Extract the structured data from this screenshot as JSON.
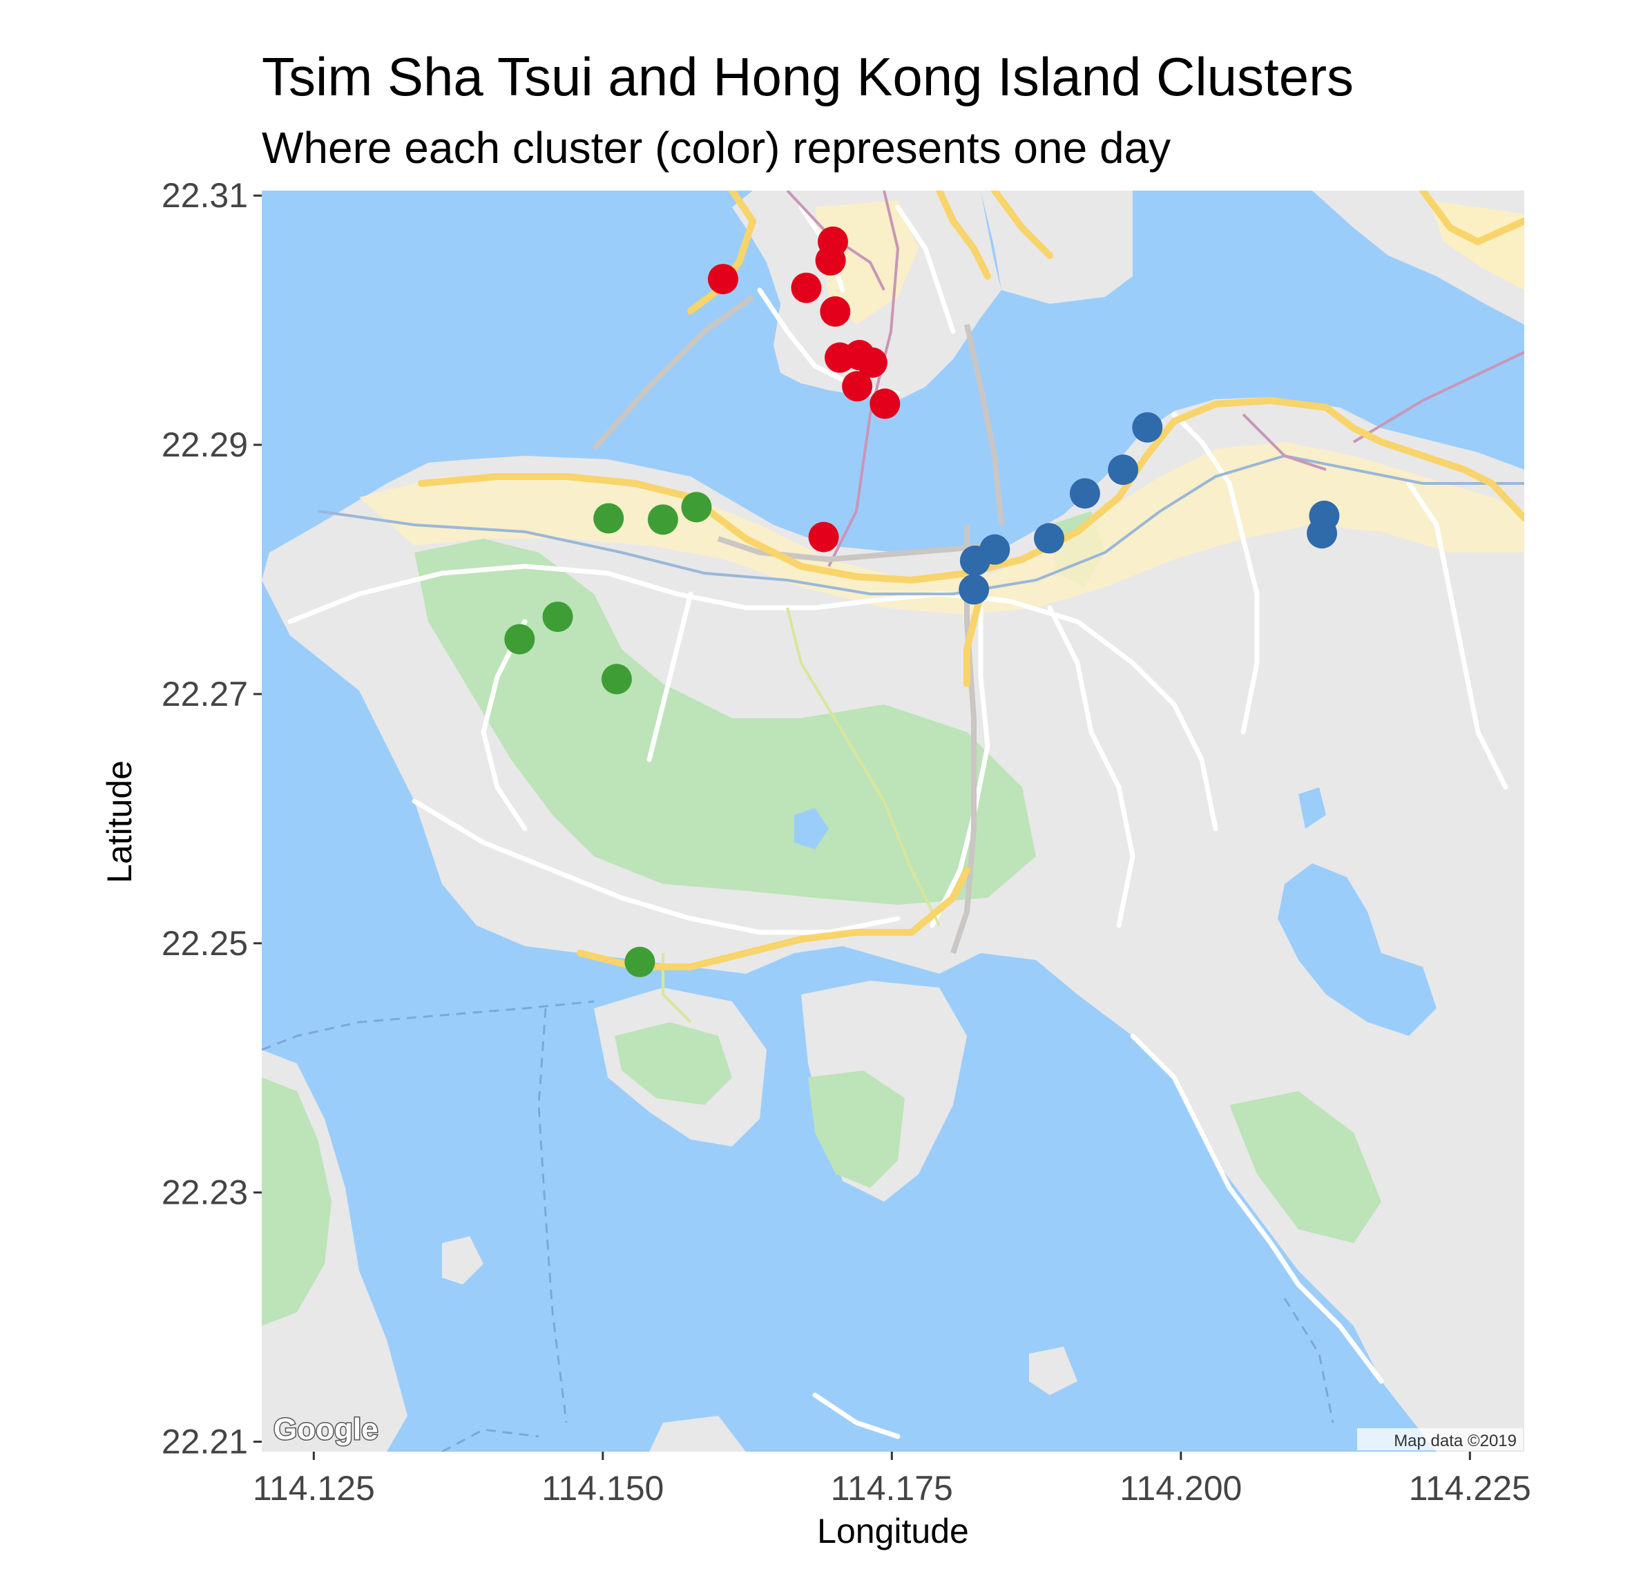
{
  "chart_data": {
    "type": "scatter",
    "title": "Tsim Sha Tsui and Hong Kong Island Clusters",
    "subtitle": "Where each cluster (color) represents one day",
    "xlabel": "Longitude",
    "ylabel": "Latitude",
    "xlim": [
      114.1205,
      114.2297
    ],
    "ylim": [
      22.2092,
      22.3104
    ],
    "x_ticks": [
      {
        "value": 114.125,
        "label": "114.125"
      },
      {
        "value": 114.15,
        "label": "114.150"
      },
      {
        "value": 114.175,
        "label": "114.175"
      },
      {
        "value": 114.2,
        "label": "114.200"
      },
      {
        "value": 114.225,
        "label": "114.225"
      }
    ],
    "y_ticks": [
      {
        "value": 22.21,
        "label": "22.21"
      },
      {
        "value": 22.23,
        "label": "22.23"
      },
      {
        "value": 22.25,
        "label": "22.25"
      },
      {
        "value": 22.27,
        "label": "22.27"
      },
      {
        "value": 22.29,
        "label": "22.29"
      },
      {
        "value": 22.31,
        "label": "22.31"
      }
    ],
    "grid": false,
    "legend": "none",
    "series": [
      {
        "color": "#e3001b",
        "points": [
          {
            "x": 114.1604,
            "y": 22.3033
          },
          {
            "x": 114.1676,
            "y": 22.3026
          },
          {
            "x": 114.1699,
            "y": 22.3063
          },
          {
            "x": 114.1697,
            "y": 22.3048
          },
          {
            "x": 114.1701,
            "y": 22.3007
          },
          {
            "x": 114.1705,
            "y": 22.297
          },
          {
            "x": 114.1722,
            "y": 22.2972
          },
          {
            "x": 114.1733,
            "y": 22.2966
          },
          {
            "x": 114.172,
            "y": 22.2947
          },
          {
            "x": 114.1744,
            "y": 22.2933
          },
          {
            "x": 114.1691,
            "y": 22.2826
          }
        ]
      },
      {
        "color": "#3e9e35",
        "points": [
          {
            "x": 114.1505,
            "y": 22.2841
          },
          {
            "x": 114.1552,
            "y": 22.284
          },
          {
            "x": 114.1581,
            "y": 22.285
          },
          {
            "x": 114.1461,
            "y": 22.2762
          },
          {
            "x": 114.1428,
            "y": 22.2744
          },
          {
            "x": 114.1512,
            "y": 22.2712
          },
          {
            "x": 114.1532,
            "y": 22.2485
          }
        ]
      },
      {
        "color": "#2f6aab",
        "points": [
          {
            "x": 114.1971,
            "y": 22.2914
          },
          {
            "x": 114.195,
            "y": 22.288
          },
          {
            "x": 114.1917,
            "y": 22.2861
          },
          {
            "x": 114.1886,
            "y": 22.2825
          },
          {
            "x": 114.1839,
            "y": 22.2816
          },
          {
            "x": 114.1822,
            "y": 22.2807
          },
          {
            "x": 114.1821,
            "y": 22.2784
          },
          {
            "x": 114.2124,
            "y": 22.2843
          },
          {
            "x": 114.2122,
            "y": 22.2829
          }
        ]
      }
    ]
  },
  "map": {
    "attribution": "Map data ©2019",
    "logo": "Google",
    "colors": {
      "water": "#9bcdfb",
      "land": "#e8e8e8",
      "park": "#bde3b8",
      "road": "#ffffff",
      "highway": "#f8d46a",
      "urban": "#fbf0c4"
    }
  }
}
